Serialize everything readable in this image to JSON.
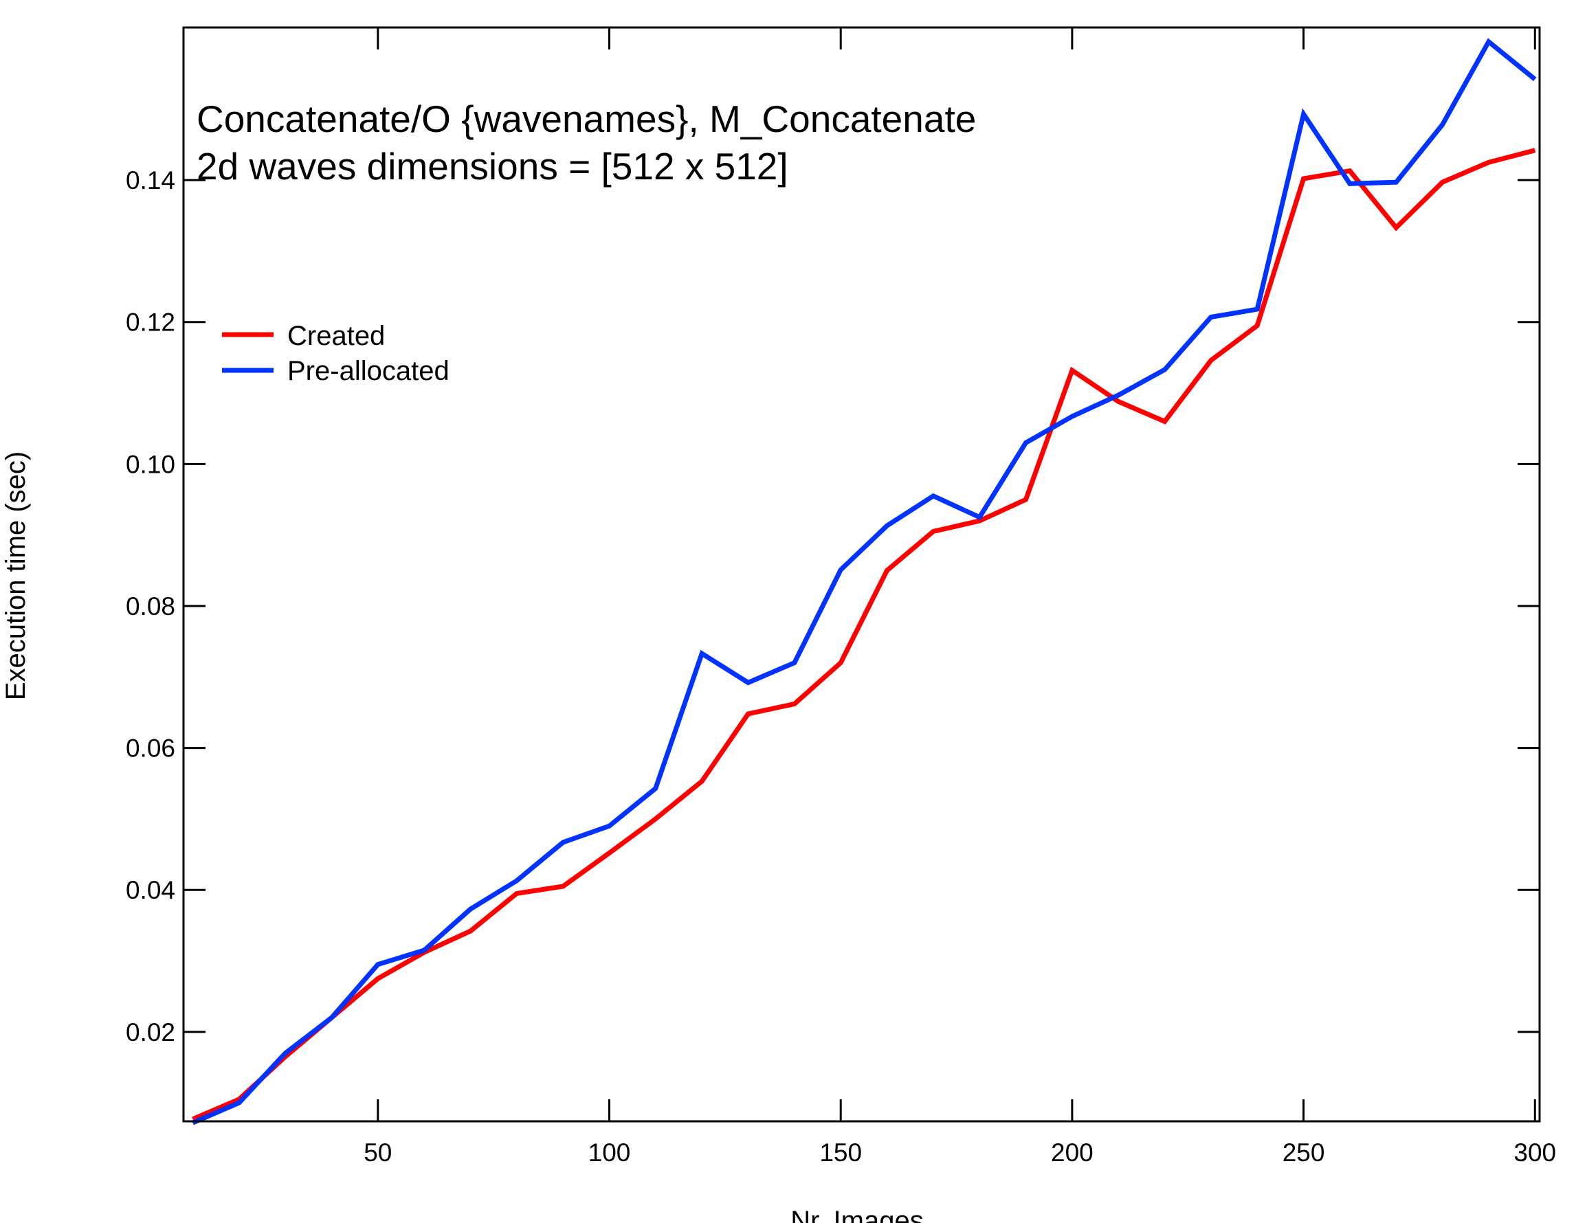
{
  "chart_data": {
    "type": "line",
    "title": [
      "Concatenate/O {wavenames},  M_Concatenate",
      "2d waves dimensions = [512 x 512]"
    ],
    "xlabel": "Nr. Images",
    "ylabel": "Execution time (sec)",
    "xlim": [
      8,
      301
    ],
    "ylim": [
      0.0074,
      0.1615
    ],
    "x_ticks": [
      50,
      100,
      150,
      200,
      250,
      300
    ],
    "x_tick_labels": [
      "50",
      "100",
      "150",
      "200",
      "250",
      "300"
    ],
    "y_ticks": [
      0.02,
      0.04,
      0.06,
      0.08,
      0.1,
      0.12,
      0.14
    ],
    "y_tick_labels": [
      "0.02",
      "0.04",
      "0.06",
      "0.08",
      "0.10",
      "0.12",
      "0.14"
    ],
    "grid": false,
    "legend_position": "upper-left",
    "x": [
      10,
      20,
      30,
      40,
      50,
      60,
      70,
      80,
      90,
      100,
      110,
      120,
      130,
      140,
      150,
      160,
      170,
      180,
      190,
      200,
      210,
      220,
      230,
      240,
      250,
      260,
      270,
      280,
      290,
      300
    ],
    "series": [
      {
        "name": "Created",
        "color": "#ff0000",
        "values": [
          0.0077,
          0.0105,
          0.0165,
          0.022,
          0.0275,
          0.0312,
          0.0342,
          0.0395,
          0.0405,
          0.0452,
          0.05,
          0.0553,
          0.0648,
          0.0662,
          0.072,
          0.085,
          0.0905,
          0.092,
          0.095,
          0.1132,
          0.1088,
          0.106,
          0.1146,
          0.1195,
          0.1402,
          0.1413,
          0.1333,
          0.1397,
          0.1425,
          0.1442
        ]
      },
      {
        "name": "Pre-allocated",
        "color": "#0033ff",
        "values": [
          0.0072,
          0.01,
          0.017,
          0.022,
          0.0295,
          0.0315,
          0.0373,
          0.0413,
          0.0467,
          0.049,
          0.0543,
          0.0733,
          0.0692,
          0.072,
          0.0851,
          0.0913,
          0.0955,
          0.0925,
          0.103,
          0.1067,
          0.1097,
          0.1133,
          0.1207,
          0.1218,
          0.1493,
          0.1395,
          0.1397,
          0.1478,
          0.1595,
          0.1542
        ]
      }
    ]
  }
}
